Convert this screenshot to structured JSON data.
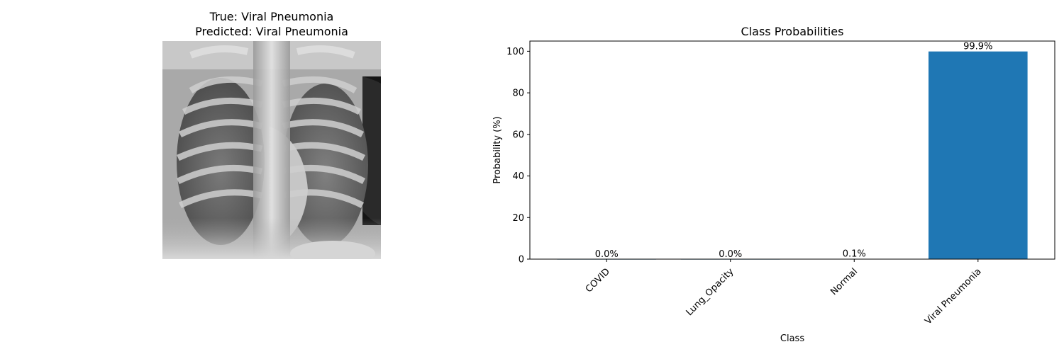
{
  "image_panel": {
    "true_label": "True: Viral Pneumonia",
    "predicted_label": "Predicted: Viral Pneumonia"
  },
  "chart_data": {
    "type": "bar",
    "title": "Class Probabilities",
    "xlabel": "Class",
    "ylabel": "Probability (%)",
    "categories": [
      "COVID",
      "Lung_Opacity",
      "Normal",
      "Viral Pneumonia"
    ],
    "values": [
      0.0,
      0.0,
      0.1,
      99.9
    ],
    "data_labels": [
      "0.0%",
      "0.0%",
      "0.1%",
      "99.9%"
    ],
    "yticks": [
      0,
      20,
      40,
      60,
      80,
      100
    ],
    "ylim": [
      0,
      104.9
    ],
    "bar_color": "#1f77b4",
    "grid": false,
    "legend": "none"
  }
}
